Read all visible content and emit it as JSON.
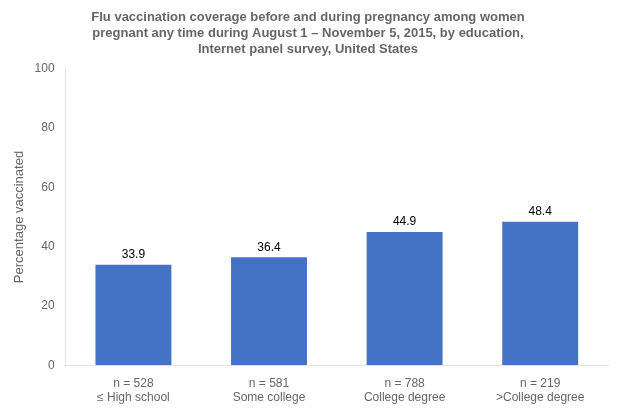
{
  "chart_data": {
    "type": "bar",
    "title": [
      "Flu vaccination coverage before and during pregnancy among women",
      "pregnant any time during August 1 – November 5, 2015, by education,",
      "Internet panel survey, United States"
    ],
    "categories": [
      "≤ High school",
      "Some college",
      "College degree",
      ">College degree"
    ],
    "sample_sizes": [
      "n = 528",
      "n = 581",
      "n = 788",
      "n = 219"
    ],
    "values": [
      33.9,
      36.4,
      44.9,
      48.4
    ],
    "color": "#4472C4",
    "ylabel": "Percentage vaccinated",
    "ylim": [
      0,
      100
    ],
    "yticks": [
      0,
      20,
      40,
      60,
      80,
      100
    ],
    "data_labels": true,
    "grid": false
  }
}
